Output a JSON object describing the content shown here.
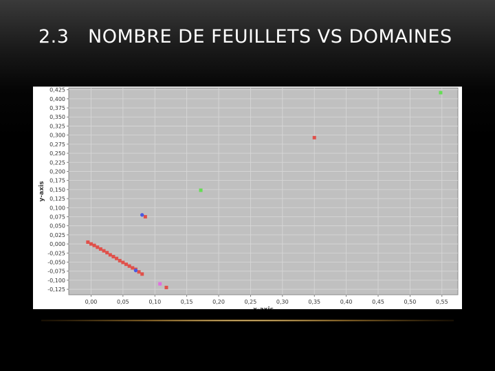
{
  "slide": {
    "title_number": "2.3",
    "title_text": "NOMBRE DE FEUILLETS VS DOMAINES"
  },
  "chart_data": {
    "type": "scatter",
    "xlabel": "x-axis",
    "ylabel": "y-axis",
    "xlim": [
      -0.035,
      0.575
    ],
    "ylim": [
      -0.14,
      0.43
    ],
    "xticks": [
      0.0,
      0.05,
      0.1,
      0.15,
      0.2,
      0.25,
      0.3,
      0.35,
      0.4,
      0.45,
      0.5,
      0.55
    ],
    "yticks": [
      -0.125,
      -0.1,
      -0.075,
      -0.05,
      -0.025,
      0.0,
      0.025,
      0.05,
      0.075,
      0.1,
      0.125,
      0.15,
      0.175,
      0.2,
      0.225,
      0.25,
      0.275,
      0.3,
      0.325,
      0.35,
      0.375,
      0.4,
      0.425
    ],
    "grid": true,
    "background": "#c0c0c0",
    "series": [
      {
        "color": "#e0504a",
        "marker": "square",
        "points": [
          [
            -0.005,
            0.005
          ],
          [
            0.0,
            0.0
          ],
          [
            0.005,
            -0.004
          ],
          [
            0.01,
            -0.009
          ],
          [
            0.015,
            -0.014
          ],
          [
            0.02,
            -0.019
          ],
          [
            0.025,
            -0.024
          ],
          [
            0.03,
            -0.03
          ],
          [
            0.035,
            -0.035
          ],
          [
            0.04,
            -0.04
          ],
          [
            0.045,
            -0.046
          ],
          [
            0.05,
            -0.051
          ],
          [
            0.055,
            -0.056
          ],
          [
            0.06,
            -0.061
          ],
          [
            0.065,
            -0.066
          ],
          [
            0.07,
            -0.07
          ],
          [
            0.075,
            -0.077
          ],
          [
            0.08,
            -0.083
          ],
          [
            0.085,
            0.075
          ],
          [
            0.118,
            -0.12
          ],
          [
            0.35,
            0.293
          ]
        ]
      },
      {
        "color": "#4a5ae0",
        "marker": "circle",
        "points": [
          [
            0.08,
            0.08
          ],
          [
            0.07,
            -0.073
          ]
        ]
      },
      {
        "color": "#66dd55",
        "marker": "square",
        "points": [
          [
            0.172,
            0.148
          ],
          [
            0.548,
            0.417
          ]
        ]
      },
      {
        "color": "#e070e0",
        "marker": "square",
        "points": [
          [
            0.108,
            -0.11
          ]
        ]
      }
    ]
  }
}
